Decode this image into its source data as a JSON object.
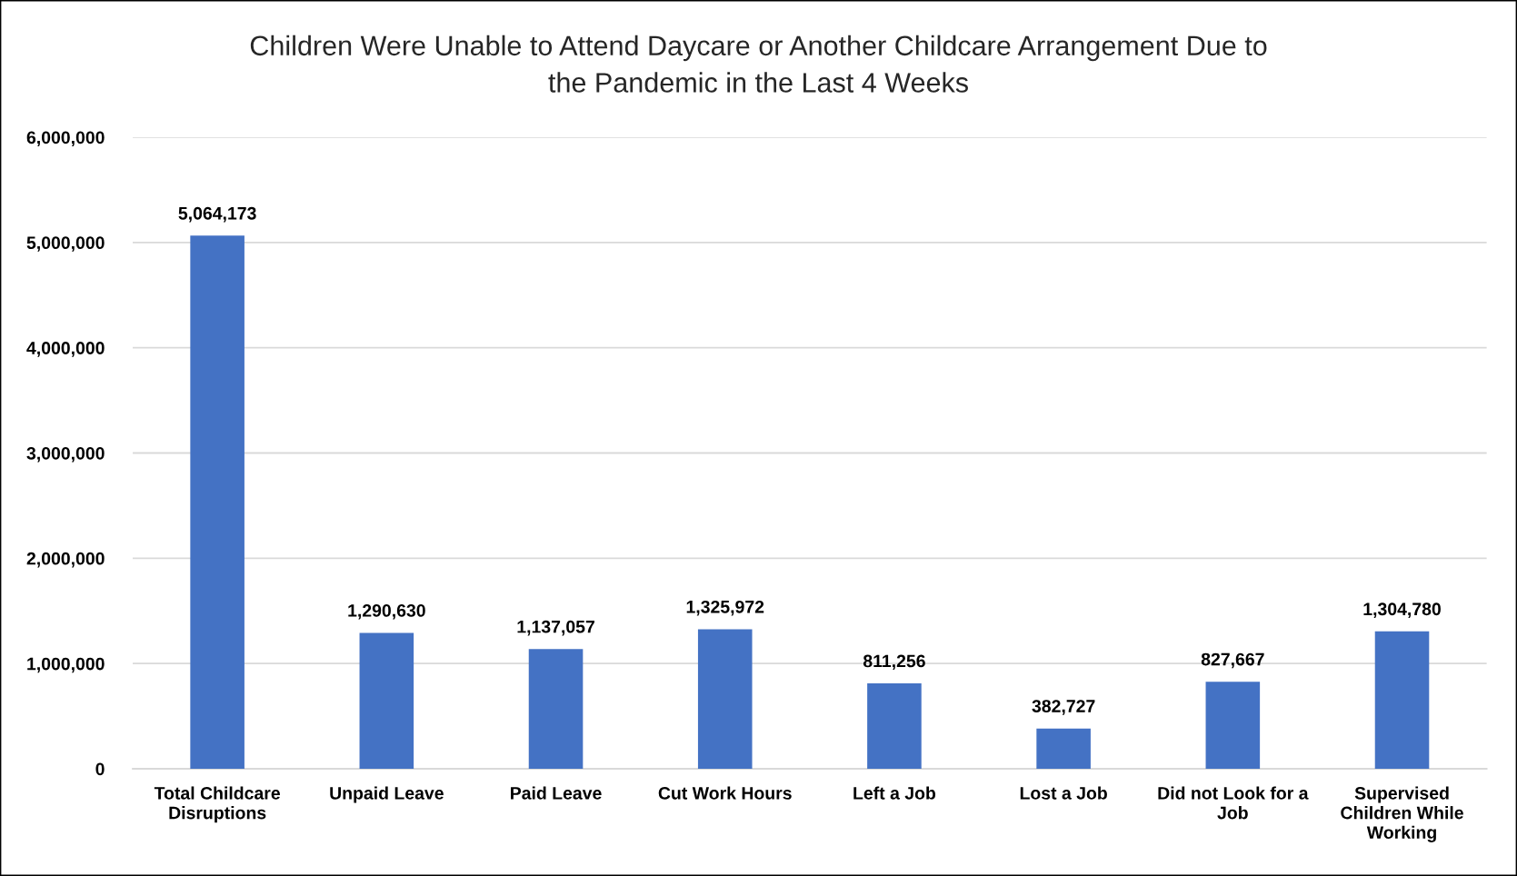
{
  "chart_data": {
    "type": "bar",
    "title": "Children Were Unable to Attend Daycare or Another Childcare Arrangement Due to the Pandemic in the Last 4 Weeks",
    "categories": [
      "Total Childcare Disruptions",
      "Unpaid Leave",
      "Paid Leave",
      "Cut Work Hours",
      "Left a Job",
      "Lost a Job",
      "Did not Look for a Job",
      "Supervised Children While Working"
    ],
    "values": [
      5064173,
      1290630,
      1137057,
      1325972,
      811256,
      382727,
      827667,
      1304780
    ],
    "value_labels": [
      "5,064,173",
      "1,290,630",
      "1,137,057",
      "1,325,972",
      "811,256",
      "382,727",
      "827,667",
      "1,304,780"
    ],
    "color": "#4472c4",
    "ylim": [
      0,
      6000000
    ],
    "yticks": [
      0,
      {
        "value": 1000000,
        "label": "1,000,000"
      },
      {
        "value": 2000000,
        "label": "2,000,000"
      },
      {
        "value": 3000000,
        "label": "3,000,000"
      },
      {
        "value": 4000000,
        "label": "4,000,000"
      },
      {
        "value": 5000000,
        "label": "5,000,000"
      },
      {
        "value": 6000000,
        "label": "6,000,000"
      }
    ],
    "grid": "y"
  }
}
